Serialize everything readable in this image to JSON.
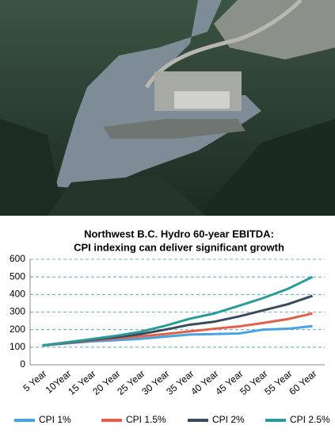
{
  "chart_data": {
    "type": "line",
    "title_lines": [
      "Northwest B.C. Hydro 60-year EBITDA:",
      "CPI indexing can deliver significant growth"
    ],
    "categories": [
      "5 Year",
      "10Year",
      "15 Year",
      "20 Year",
      "25 Year",
      "30 Year",
      "35 Year",
      "40 Year",
      "45 Year",
      "50 Year",
      "55 Year",
      "60 Year"
    ],
    "series": [
      {
        "name": "CPI 1%",
        "color": "#4aa3df",
        "values": [
          110,
          122,
          133,
          140,
          148,
          160,
          172,
          175,
          178,
          200,
          205,
          220
        ]
      },
      {
        "name": "CPI 1.5%",
        "color": "#e0604a",
        "values": [
          110,
          124,
          138,
          150,
          162,
          175,
          190,
          205,
          218,
          238,
          260,
          292
        ]
      },
      {
        "name": "CPI 2%",
        "color": "#3b4a5a",
        "values": [
          110,
          126,
          142,
          157,
          175,
          200,
          228,
          245,
          275,
          310,
          345,
          392
        ]
      },
      {
        "name": "CPI 2.5%",
        "color": "#2a9a9a",
        "values": [
          110,
          128,
          146,
          165,
          188,
          222,
          262,
          292,
          335,
          380,
          432,
          500
        ]
      }
    ],
    "ylim": [
      0,
      600
    ],
    "yticks": [
      0,
      100,
      200,
      300,
      400,
      500,
      600
    ],
    "grid": true,
    "legend": "bottom"
  }
}
